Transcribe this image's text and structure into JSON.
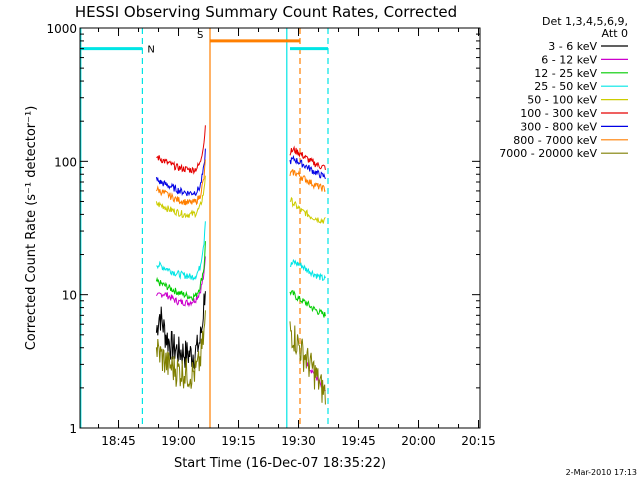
{
  "chart_data": {
    "type": "line",
    "title": "HESSI Observing Summary Count Rates, Corrected",
    "xlabel": "Start Time (16-Dec-07 18:35:22)",
    "ylabel": "Corrected Count Rate (s⁻¹ detector⁻¹)",
    "yscale": "log",
    "ylim": [
      1,
      1000
    ],
    "xlim_minutes_after_18_35_22": [
      0,
      100
    ],
    "x_ticks": [
      "18:45",
      "19:00",
      "19:15",
      "19:30",
      "19:45",
      "20:00",
      "20:15"
    ],
    "y_ticks": [
      "1",
      "10",
      "100",
      "1000"
    ],
    "legend_header": [
      "Det 1,3,4,5,6,9,",
      "Att 0"
    ],
    "legend_position": "right",
    "series": [
      {
        "name": "3 - 6 keV",
        "color": "#000000",
        "points": [
          [
            19.1,
            5.2
          ],
          [
            19.5,
            6.5
          ],
          [
            20,
            7.2
          ],
          [
            20.5,
            6.4
          ],
          [
            21,
            5.6
          ],
          [
            21.5,
            5.0
          ],
          [
            22,
            4.6
          ],
          [
            23,
            4.2
          ],
          [
            24,
            3.9
          ],
          [
            25,
            3.8
          ],
          [
            26,
            3.7
          ],
          [
            27,
            3.6
          ],
          [
            28,
            3.6
          ],
          [
            29,
            3.8
          ],
          [
            30,
            4.5
          ],
          [
            30.5,
            5.8
          ],
          [
            31,
            9.0
          ],
          [
            31.5,
            14
          ]
        ]
      },
      {
        "name": "6 - 12 keV",
        "color": "#cc00cc",
        "points": [
          [
            19.1,
            9.5
          ],
          [
            20,
            10
          ],
          [
            21,
            10.2
          ],
          [
            22,
            9.8
          ],
          [
            23,
            9.4
          ],
          [
            24,
            9.0
          ],
          [
            25,
            8.8
          ],
          [
            26,
            8.8
          ],
          [
            27,
            8.7
          ],
          [
            28,
            8.9
          ],
          [
            29,
            9.3
          ],
          [
            30,
            10.5
          ],
          [
            31,
            14
          ],
          [
            31.5,
            22
          ]
        ],
        "points_late": [
          [
            56.5,
            3.2
          ],
          [
            57.5,
            2.8
          ],
          [
            58.5,
            2.6
          ],
          [
            59.5,
            2.3
          ],
          [
            60.5,
            2.0
          ],
          [
            61.5,
            1.8
          ]
        ]
      },
      {
        "name": "12 - 25 keV",
        "color": "#00cc00",
        "points": [
          [
            19.1,
            12.5
          ],
          [
            20,
            12.2
          ],
          [
            21,
            11.8
          ],
          [
            22,
            11.4
          ],
          [
            23,
            11.0
          ],
          [
            24,
            10.6
          ],
          [
            25,
            10.3
          ],
          [
            26,
            10.0
          ],
          [
            27,
            9.8
          ],
          [
            28,
            9.6
          ],
          [
            29,
            9.9
          ],
          [
            30,
            11.5
          ],
          [
            31,
            16
          ],
          [
            31.5,
            30
          ]
        ],
        "points_late": [
          [
            52.5,
            10.5
          ],
          [
            53.5,
            10.0
          ],
          [
            54.5,
            9.4
          ],
          [
            55.5,
            9.0
          ],
          [
            56.5,
            8.7
          ],
          [
            57.5,
            8.2
          ],
          [
            58.5,
            7.8
          ],
          [
            59.5,
            7.5
          ],
          [
            60.5,
            7.2
          ],
          [
            61.5,
            7.0
          ]
        ]
      },
      {
        "name": "25 - 50 keV",
        "color": "#00e5e5",
        "points": [
          [
            19.1,
            17
          ],
          [
            20,
            16.5
          ],
          [
            21,
            16.0
          ],
          [
            22,
            15.5
          ],
          [
            23,
            15.0
          ],
          [
            24,
            14.5
          ],
          [
            25,
            14.2
          ],
          [
            26,
            14.0
          ],
          [
            27,
            13.8
          ],
          [
            28,
            13.5
          ],
          [
            29,
            14
          ],
          [
            30,
            16
          ],
          [
            31,
            25
          ],
          [
            31.5,
            45
          ]
        ],
        "points_late": [
          [
            52.5,
            16.5
          ],
          [
            53.5,
            17.5
          ],
          [
            54.5,
            17.0
          ],
          [
            55.5,
            16.5
          ],
          [
            56.5,
            15.5
          ],
          [
            57.5,
            15.0
          ],
          [
            58.5,
            14.3
          ],
          [
            59.5,
            13.8
          ],
          [
            60.5,
            13.3
          ],
          [
            61.5,
            13.0
          ]
        ]
      },
      {
        "name": "50 - 100 keV",
        "color": "#cccc00",
        "points": [
          [
            19.1,
            48
          ],
          [
            20,
            47
          ],
          [
            21,
            46
          ],
          [
            22,
            44
          ],
          [
            23,
            43
          ],
          [
            24,
            42
          ],
          [
            25,
            41
          ],
          [
            26,
            40
          ],
          [
            27,
            40
          ],
          [
            28,
            40
          ],
          [
            29,
            41
          ],
          [
            30,
            45
          ],
          [
            31,
            60
          ],
          [
            31.5,
            90
          ]
        ],
        "points_late": [
          [
            52.5,
            52
          ],
          [
            53.5,
            48
          ],
          [
            54.5,
            45
          ],
          [
            55.5,
            42
          ],
          [
            56.5,
            41
          ],
          [
            57.5,
            39
          ],
          [
            58.5,
            38
          ],
          [
            59.5,
            37
          ],
          [
            60.5,
            36
          ],
          [
            61.5,
            36
          ]
        ]
      },
      {
        "name": "100 - 300 keV",
        "color": "#e50000",
        "points": [
          [
            19.1,
            108
          ],
          [
            20,
            105
          ],
          [
            21,
            101
          ],
          [
            22,
            97
          ],
          [
            23,
            94
          ],
          [
            24,
            91
          ],
          [
            25,
            89
          ],
          [
            26,
            88
          ],
          [
            27,
            87
          ],
          [
            28,
            86
          ],
          [
            29,
            88
          ],
          [
            30,
            96
          ],
          [
            31,
            140
          ],
          [
            31.5,
            210
          ]
        ],
        "points_late": [
          [
            52.5,
            118
          ],
          [
            53.5,
            122
          ],
          [
            54.5,
            117
          ],
          [
            55.5,
            112
          ],
          [
            56.5,
            106
          ],
          [
            57.5,
            101
          ],
          [
            58.5,
            97
          ],
          [
            59.5,
            94
          ],
          [
            60.5,
            91
          ],
          [
            61.5,
            90
          ]
        ]
      },
      {
        "name": "300 - 800 keV",
        "color": "#0000e5",
        "points": [
          [
            19.1,
            73
          ],
          [
            20,
            70
          ],
          [
            21,
            68
          ],
          [
            22,
            66
          ],
          [
            23,
            64
          ],
          [
            24,
            62
          ],
          [
            25,
            60
          ],
          [
            26,
            59
          ],
          [
            27,
            58
          ],
          [
            28,
            58
          ],
          [
            29,
            59
          ],
          [
            30,
            64
          ],
          [
            31,
            90
          ],
          [
            31.5,
            140
          ]
        ],
        "points_late": [
          [
            52.5,
            100
          ],
          [
            53.5,
            104
          ],
          [
            54.5,
            100
          ],
          [
            55.5,
            96
          ],
          [
            56.5,
            92
          ],
          [
            57.5,
            88
          ],
          [
            58.5,
            84
          ],
          [
            59.5,
            81
          ],
          [
            60.5,
            78
          ],
          [
            61.5,
            76
          ]
        ]
      },
      {
        "name": "800 - 7000 keV",
        "color": "#ff7f00",
        "points": [
          [
            19.1,
            62
          ],
          [
            20,
            60
          ],
          [
            21,
            58
          ],
          [
            22,
            56
          ],
          [
            23,
            54
          ],
          [
            24,
            52
          ],
          [
            25,
            51
          ],
          [
            26,
            50
          ],
          [
            27,
            49
          ],
          [
            28,
            49
          ],
          [
            29,
            50
          ],
          [
            30,
            55
          ],
          [
            31,
            75
          ],
          [
            31.5,
            115
          ]
        ],
        "points_late": [
          [
            52.5,
            80
          ],
          [
            53.5,
            83
          ],
          [
            54.5,
            80
          ],
          [
            55.5,
            76
          ],
          [
            56.5,
            73
          ],
          [
            57.5,
            70
          ],
          [
            58.5,
            67
          ],
          [
            59.5,
            65
          ],
          [
            60.5,
            63
          ],
          [
            61.5,
            62
          ]
        ]
      },
      {
        "name": "7000 - 20000 keV",
        "color": "#7f7f00",
        "points": [
          [
            19.1,
            4.0
          ],
          [
            20,
            3.6
          ],
          [
            21,
            3.3
          ],
          [
            22,
            3.0
          ],
          [
            23,
            2.9
          ],
          [
            24,
            2.8
          ],
          [
            25,
            2.7
          ],
          [
            26,
            2.7
          ],
          [
            27,
            2.6
          ],
          [
            28,
            2.6
          ],
          [
            29,
            2.7
          ],
          [
            30,
            3.2
          ],
          [
            31,
            5.0
          ],
          [
            31.5,
            8.0
          ]
        ],
        "points_late": [
          [
            52.5,
            5.5
          ],
          [
            53.5,
            5.0
          ],
          [
            54.5,
            4.3
          ],
          [
            55.5,
            3.8
          ],
          [
            56.5,
            3.4
          ],
          [
            57.5,
            3.0
          ],
          [
            58.5,
            2.7
          ],
          [
            59.5,
            2.3
          ],
          [
            60.5,
            2.0
          ],
          [
            61.5,
            1.8
          ]
        ]
      }
    ],
    "flags": [
      {
        "label": "N",
        "color": "#00e5e5",
        "level": 700,
        "x_range": [
          0,
          15.6
        ],
        "dash_at": [
          15.6
        ]
      },
      {
        "label": "S",
        "color": "#ff7f00",
        "level": 800,
        "x_range": [
          32.5,
          55
        ],
        "dash_at": [
          55
        ]
      },
      {
        "label": "",
        "color": "#00e5e5",
        "level": 700,
        "x_range": [
          52.5,
          62
        ],
        "dash_at": [
          62
        ]
      }
    ],
    "vertical_markers": [
      {
        "x": 0.2,
        "color": "#00e5e5",
        "style": "solid"
      },
      {
        "x": 15.6,
        "color": "#00e5e5",
        "style": "dashed"
      },
      {
        "x": 32.5,
        "color": "#ff7f00",
        "style": "solid"
      },
      {
        "x": 51.7,
        "color": "#00e5e5",
        "style": "solid"
      },
      {
        "x": 55.0,
        "color": "#ff7f00",
        "style": "dashed"
      },
      {
        "x": 62.0,
        "color": "#00e5e5",
        "style": "dashed"
      }
    ]
  },
  "timestamp": "2-Mar-2010 17:13"
}
